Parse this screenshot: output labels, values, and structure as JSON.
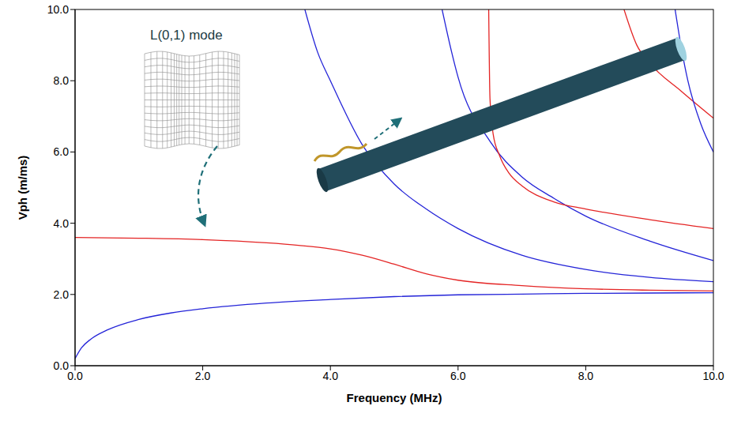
{
  "chart_data": {
    "type": "line",
    "x_label": "Frequency (MHz)",
    "y_label": "Vph (m/ms)",
    "annotations": [
      {
        "text": "L(0,1) mode"
      }
    ],
    "xlim": [
      0,
      10
    ],
    "ylim": [
      0,
      10
    ],
    "xticks": [
      {
        "value": 0,
        "label": "0.0"
      },
      {
        "value": 2,
        "label": "2.0"
      },
      {
        "value": 4,
        "label": "4.0"
      },
      {
        "value": 6,
        "label": "6.0"
      },
      {
        "value": 8,
        "label": "8.0"
      },
      {
        "value": 10,
        "label": "10.0"
      }
    ],
    "yticks": [
      {
        "value": 0,
        "label": "0.0"
      },
      {
        "value": 2,
        "label": "2.0"
      },
      {
        "value": 4,
        "label": "4.0"
      },
      {
        "value": 6,
        "label": "6.0"
      },
      {
        "value": 8,
        "label": "8.0"
      },
      {
        "value": 10,
        "label": "10.0"
      }
    ],
    "grid": false,
    "series": [
      {
        "color": "#2424d8",
        "x": [
          0,
          0.1,
          0.25,
          0.5,
          1,
          1.5,
          2,
          3,
          4,
          5,
          6,
          7,
          8,
          9,
          10
        ],
        "values": [
          0.2,
          0.5,
          0.75,
          1.0,
          1.3,
          1.48,
          1.6,
          1.76,
          1.86,
          1.94,
          1.99,
          2.01,
          2.03,
          2.04,
          2.05
        ]
      },
      {
        "color": "#e42424",
        "x": [
          0,
          1,
          2,
          3,
          3.5,
          4,
          4.5,
          5,
          5.5,
          6,
          7,
          8,
          9,
          10
        ],
        "values": [
          3.6,
          3.58,
          3.54,
          3.45,
          3.38,
          3.28,
          3.1,
          2.85,
          2.58,
          2.4,
          2.25,
          2.16,
          2.12,
          2.1
        ]
      },
      {
        "color": "#2424d8",
        "x": [
          3.6,
          3.8,
          4,
          4.5,
          5,
          5.5,
          6,
          7,
          8,
          9,
          10
        ],
        "values": [
          10,
          8.8,
          8.0,
          6.2,
          5.1,
          4.4,
          3.85,
          3.1,
          2.7,
          2.48,
          2.36
        ]
      },
      {
        "color": "#2424d8",
        "x": [
          5.75,
          5.9,
          6,
          6.5,
          7,
          7.5,
          8,
          9,
          10
        ],
        "values": [
          10,
          8.8,
          8.1,
          6.3,
          5.3,
          4.7,
          4.2,
          3.5,
          2.95
        ]
      },
      {
        "color": "#e42424",
        "x": [
          6.48,
          6.5,
          6.55,
          6.65,
          6.8,
          7,
          7.5,
          8,
          9,
          10
        ],
        "values": [
          10,
          7.5,
          6.5,
          5.9,
          5.4,
          5.05,
          4.6,
          4.4,
          4.1,
          3.85
        ]
      },
      {
        "color": "#e42424",
        "x": [
          8.6,
          8.8,
          9,
          9.5,
          10
        ],
        "values": [
          10,
          9.0,
          8.5,
          7.7,
          6.95
        ]
      },
      {
        "color": "#2424d8",
        "x": [
          9.4,
          9.5,
          9.6,
          9.8,
          10
        ],
        "values": [
          10,
          8.9,
          8.0,
          6.8,
          6.0
        ]
      }
    ]
  }
}
